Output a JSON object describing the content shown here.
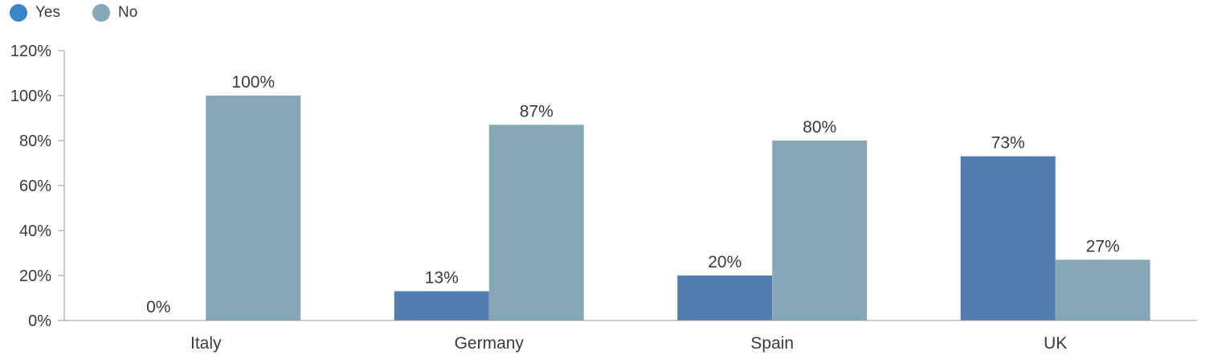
{
  "chart_data": {
    "type": "bar",
    "categories": [
      "Italy",
      "Germany",
      "Spain",
      "UK"
    ],
    "series": [
      {
        "name": "Yes",
        "values": [
          0,
          13,
          20,
          73
        ],
        "labels": [
          "0%",
          "13%",
          "20%",
          "73%"
        ],
        "color": "#527bae"
      },
      {
        "name": "No",
        "values": [
          100,
          87,
          80,
          27
        ],
        "labels": [
          "100%",
          "87%",
          "80%",
          "27%"
        ],
        "color": "#86a8b6"
      }
    ],
    "ylim": [
      0,
      120
    ],
    "yticks": [
      0,
      20,
      40,
      60,
      80,
      100,
      120
    ],
    "ytick_labels": [
      "0%",
      "20%",
      "40%",
      "60%",
      "80%",
      "100%",
      "120%"
    ],
    "grid": false,
    "legend_position": "top-left",
    "legend_colors": [
      "#3a86c8",
      "#86a8b6"
    ]
  }
}
